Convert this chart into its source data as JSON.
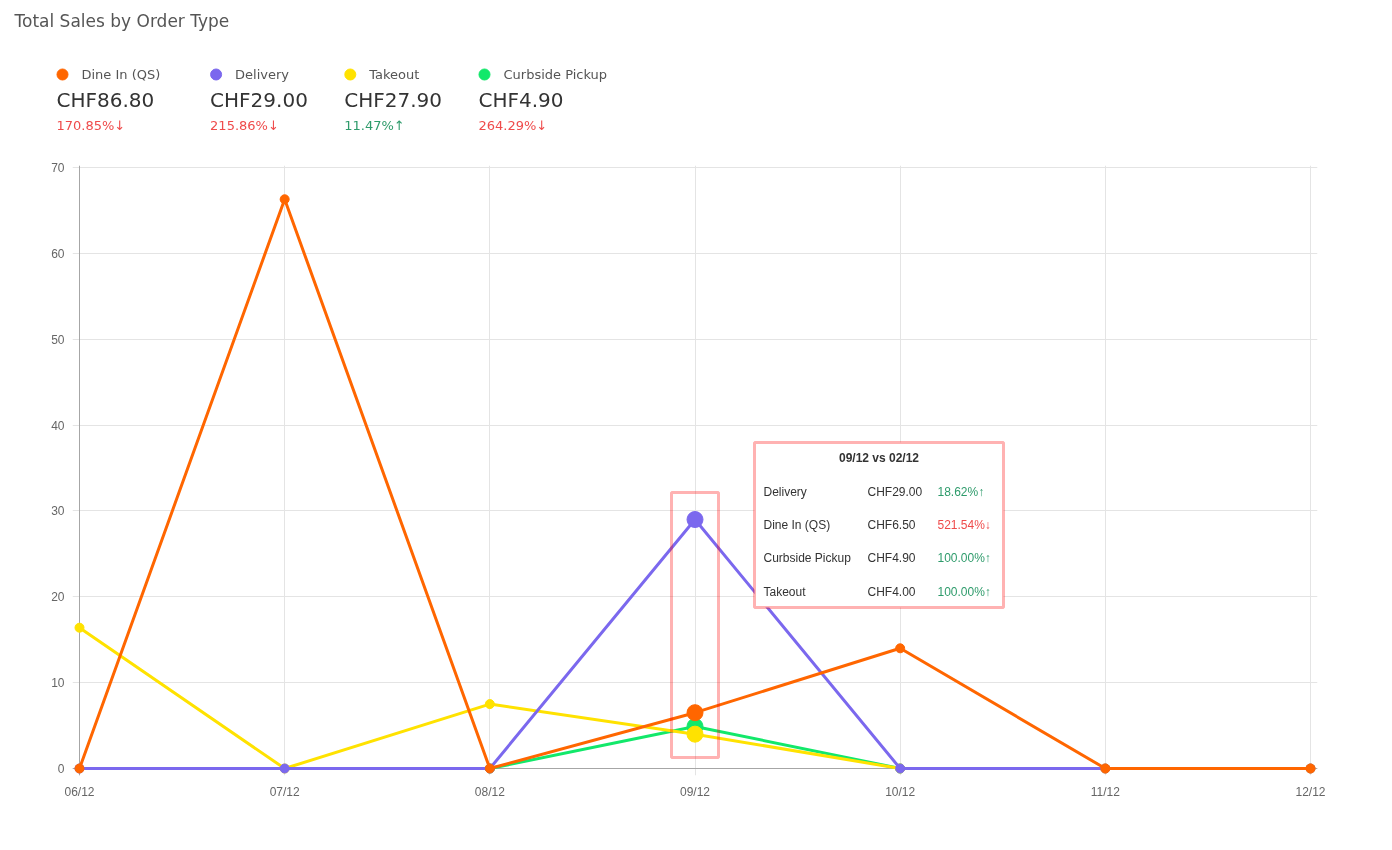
{
  "chart_data": {
    "type": "line",
    "title": "Total Sales by Order Type",
    "categories": [
      "06/12",
      "07/12",
      "08/12",
      "09/12",
      "10/12",
      "11/12",
      "12/12"
    ],
    "series": [
      {
        "name": "Dine In (QS)",
        "color": "#ff6600",
        "values": [
          0,
          66.3,
          0,
          6.5,
          14.0,
          0,
          0
        ]
      },
      {
        "name": "Delivery",
        "color": "#7b68ee",
        "values": [
          0,
          0,
          0,
          29.0,
          0,
          0,
          0
        ]
      },
      {
        "name": "Takeout",
        "color": "#ffe200",
        "values": [
          16.4,
          0,
          7.5,
          4.0,
          0,
          0,
          0
        ]
      },
      {
        "name": "Curbside Pickup",
        "color": "#12e86a",
        "values": [
          null,
          null,
          0,
          4.9,
          0,
          null,
          null
        ]
      }
    ],
    "ylim": [
      0,
      70
    ],
    "yticks": [
      0,
      10,
      20,
      30,
      40,
      50,
      60,
      70
    ],
    "grid": true,
    "legend": "top left",
    "marker": "circle",
    "annotations": [
      "CHF86.80",
      "170.85%↓",
      "CHF29.00",
      "215.86%↓",
      "CHF27.90",
      "11.47%↑",
      "CHF4.90",
      "264.29%↓",
      "09/12 vs 02/12",
      "Delivery",
      "CHF29.00",
      "18.62%↑",
      "Dine In (QS)",
      "CHF6.50",
      "521.54%↓",
      "Curbside Pickup",
      "CHF4.90",
      "100.00%↑",
      "Takeout",
      "CHF4.00",
      "100.00%↑"
    ]
  }
}
